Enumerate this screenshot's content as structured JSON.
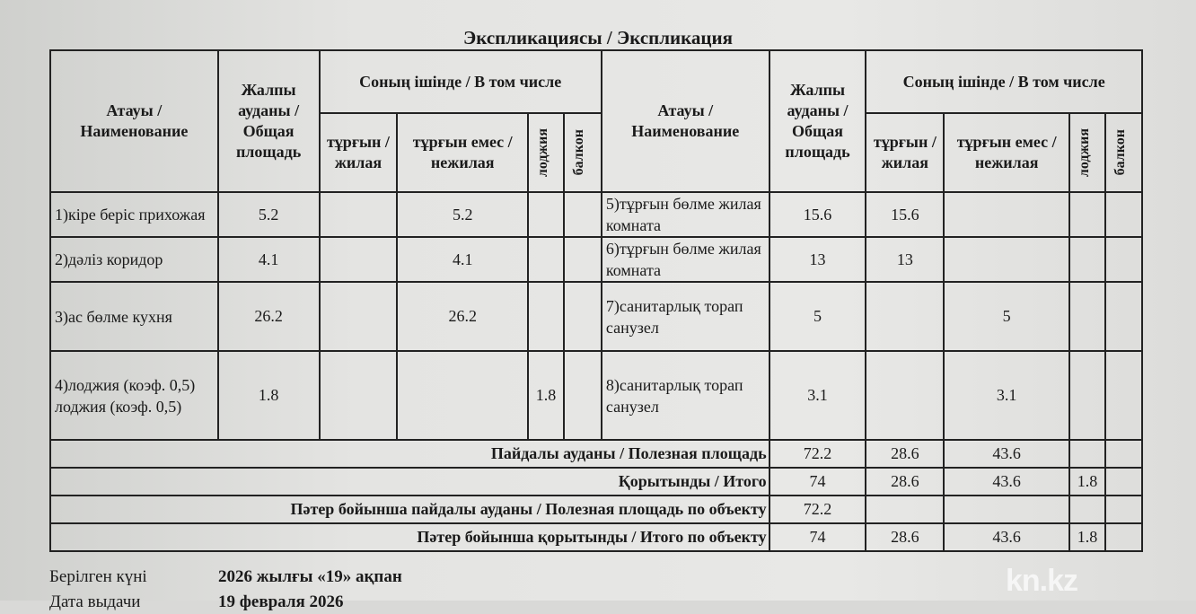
{
  "title": "Экспликациясы / Экспликация",
  "headers": {
    "name": "Атауы / Наименование",
    "total": "Жалпы ауданы / Общая площадь",
    "including": "Соның ішінде / В том числе",
    "living": "тұрғын / жилая",
    "nonliving": "тұрғын емес / нежилая",
    "loggia": "лоджия",
    "balcony": "балкон"
  },
  "rows": [
    {
      "left": {
        "name": "1)кіре беріс прихожая",
        "total": "5.2",
        "living": "",
        "nonliving": "5.2",
        "loggia": "",
        "balcony": ""
      },
      "right": {
        "name": "5)тұрғын бөлме жилая комната",
        "total": "15.6",
        "living": "15.6",
        "nonliving": "",
        "loggia": "",
        "balcony": ""
      }
    },
    {
      "left": {
        "name": "2)дәліз коридор",
        "total": "4.1",
        "living": "",
        "nonliving": "4.1",
        "loggia": "",
        "balcony": ""
      },
      "right": {
        "name": "6)тұрғын бөлме жилая комната",
        "total": "13",
        "living": "13",
        "nonliving": "",
        "loggia": "",
        "balcony": ""
      }
    },
    {
      "left": {
        "name": "3)ас бөлме кухня",
        "total": "26.2",
        "living": "",
        "nonliving": "26.2",
        "loggia": "",
        "balcony": ""
      },
      "right": {
        "name": "7)санитарлық торап санузел",
        "total": "5",
        "living": "",
        "nonliving": "5",
        "loggia": "",
        "balcony": ""
      }
    },
    {
      "left": {
        "name": "4)лоджия (коэф. 0,5) лоджия (коэф. 0,5)",
        "total": "1.8",
        "living": "",
        "nonliving": "",
        "loggia": "1.8",
        "balcony": ""
      },
      "right": {
        "name": "8)санитарлық торап санузел",
        "total": "3.1",
        "living": "",
        "nonliving": "3.1",
        "loggia": "",
        "balcony": ""
      }
    }
  ],
  "summary": [
    {
      "label": "Пайдалы ауданы / Полезная площадь",
      "total": "72.2",
      "living": "28.6",
      "nonliving": "43.6",
      "loggia": "",
      "balcony": ""
    },
    {
      "label": "Қорытынды / Итого",
      "total": "74",
      "living": "28.6",
      "nonliving": "43.6",
      "loggia": "1.8",
      "balcony": ""
    },
    {
      "label": "Пәтер бойынша пайдалы ауданы / Полезная площадь по объекту",
      "total": "72.2",
      "living": "",
      "nonliving": "",
      "loggia": "",
      "balcony": ""
    },
    {
      "label": "Пәтер бойынша қорытынды / Итого по объекту",
      "total": "74",
      "living": "28.6",
      "nonliving": "43.6",
      "loggia": "1.8",
      "balcony": ""
    }
  ],
  "footer": {
    "issued_label_kz": "Берілген күні",
    "issued_value_kz": "2026 жылғы «19» ақпан",
    "issued_label_ru": "Дата выдачи",
    "issued_value_ru": "19 февраля 2026"
  },
  "watermark": "kn.kz"
}
